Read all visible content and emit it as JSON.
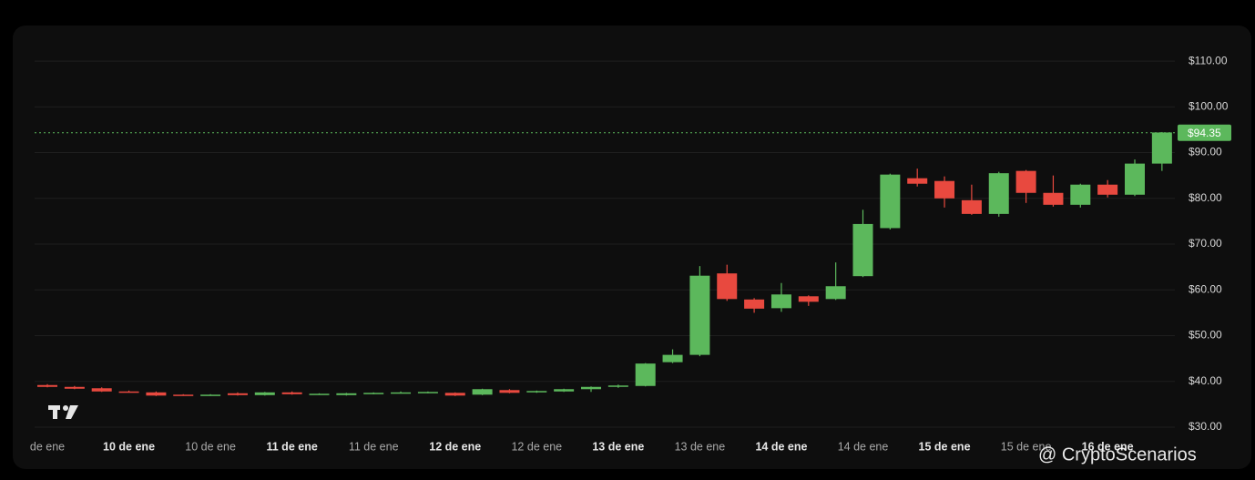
{
  "chart_data": {
    "type": "candlestick",
    "categories": [
      "de ene",
      null,
      null,
      "10 de ene",
      null,
      null,
      "10 de ene",
      null,
      null,
      "11 de ene",
      null,
      null,
      "11 de ene",
      null,
      null,
      "12 de ene",
      null,
      null,
      "12 de ene",
      null,
      null,
      "13 de ene",
      null,
      null,
      "13 de ene",
      null,
      null,
      "14 de ene",
      null,
      null,
      "14 de ene",
      null,
      null,
      "15 de ene",
      null,
      null,
      "15 de ene",
      null,
      null,
      "16 de ene",
      null,
      null
    ],
    "open": [
      39.2,
      38.8,
      38.5,
      37.8,
      37.6,
      37.1,
      37.0,
      37.4,
      37.0,
      37.6,
      37.2,
      37.0,
      37.3,
      37.5,
      37.6,
      37.5,
      37.1,
      38.1,
      37.6,
      37.8,
      38.3,
      38.8,
      39.0,
      44.2,
      45.8,
      63.6,
      57.9,
      56.0,
      58.6,
      58.0,
      63.0,
      73.5,
      84.4,
      83.8,
      79.6,
      76.6,
      86.0,
      81.2,
      78.6,
      83.0,
      80.8,
      87.6
    ],
    "high": [
      39.4,
      39.0,
      38.7,
      38.0,
      37.8,
      37.2,
      37.2,
      37.6,
      37.7,
      37.8,
      37.4,
      37.5,
      37.6,
      37.8,
      37.8,
      37.6,
      38.4,
      38.3,
      38.0,
      38.4,
      38.9,
      39.3,
      44.0,
      47.0,
      65.2,
      65.5,
      58.2,
      61.5,
      58.8,
      66.0,
      77.5,
      85.4,
      86.5,
      84.8,
      83.0,
      85.8,
      86.2,
      85.0,
      83.2,
      84.0,
      88.5,
      94.5
    ],
    "low": [
      38.7,
      38.3,
      37.7,
      37.6,
      36.8,
      36.9,
      36.9,
      36.9,
      36.9,
      37.1,
      37.1,
      36.9,
      37.2,
      37.4,
      37.4,
      36.8,
      37.0,
      37.4,
      37.5,
      37.7,
      37.7,
      38.6,
      38.9,
      44.0,
      45.5,
      57.6,
      55.0,
      55.2,
      56.5,
      57.8,
      62.8,
      73.2,
      82.6,
      78.0,
      76.4,
      76.0,
      79.0,
      78.2,
      78.0,
      80.2,
      80.5,
      86.0
    ],
    "close": [
      38.8,
      38.4,
      37.8,
      37.7,
      36.9,
      37.0,
      37.1,
      37.0,
      37.6,
      37.2,
      37.3,
      37.4,
      37.5,
      37.6,
      37.7,
      36.9,
      38.3,
      37.5,
      37.9,
      38.3,
      38.8,
      39.1,
      43.9,
      45.8,
      63.1,
      58.0,
      55.9,
      59.0,
      57.4,
      60.8,
      74.4,
      85.2,
      83.2,
      80.0,
      76.6,
      85.5,
      81.2,
      78.6,
      83.0,
      80.8,
      87.6,
      94.4
    ],
    "up_color": "#5cb85c",
    "down_color": "#e8493f",
    "ylim": [
      29,
      113.4
    ],
    "yticks": [
      {
        "value": 30,
        "label": "$30.00"
      },
      {
        "value": 40,
        "label": "$40.00"
      },
      {
        "value": 50,
        "label": "$50.00"
      },
      {
        "value": 60,
        "label": "$60.00"
      },
      {
        "value": 70,
        "label": "$70.00"
      },
      {
        "value": 80,
        "label": "$80.00"
      },
      {
        "value": 90,
        "label": "$90.00"
      },
      {
        "value": 100,
        "label": "$100.00"
      },
      {
        "value": 110,
        "label": "$110.00"
      }
    ],
    "grid": true,
    "last_price": {
      "value": 94.35,
      "label": "$94.35"
    },
    "watermark": "@ CryptoScenarios"
  }
}
